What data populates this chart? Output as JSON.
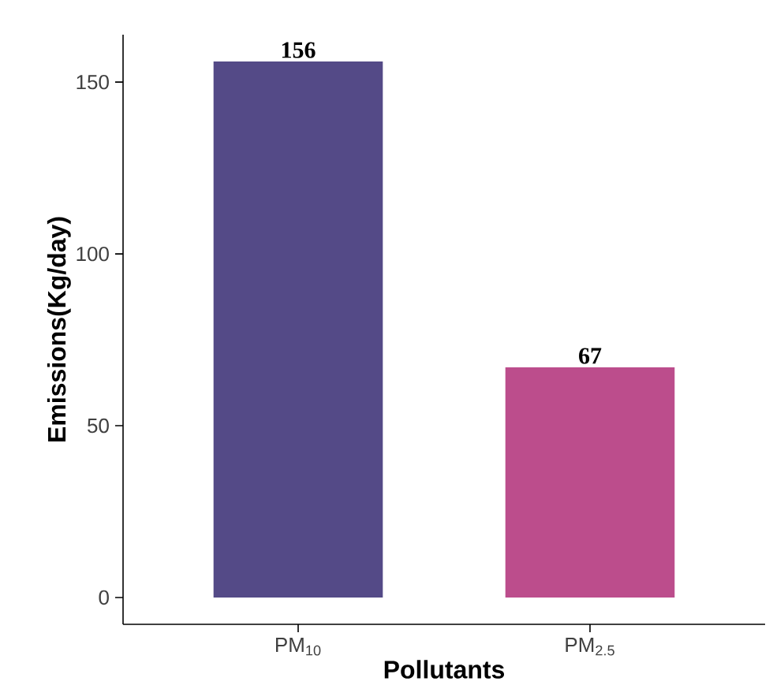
{
  "chart_data": {
    "type": "bar",
    "xlabel": "Pollutants",
    "ylabel": "Emissions(Kg/day)",
    "categories": [
      "PM$_{10}$",
      "PM$_{2.5}$"
    ],
    "values": [
      156,
      67
    ],
    "colors": [
      "#544a87",
      "#bc4d8c"
    ],
    "value_labels": [
      "156",
      "67"
    ],
    "ylim": [
      -7.8,
      163.8
    ],
    "yticks": [
      0,
      50,
      100,
      150
    ]
  }
}
